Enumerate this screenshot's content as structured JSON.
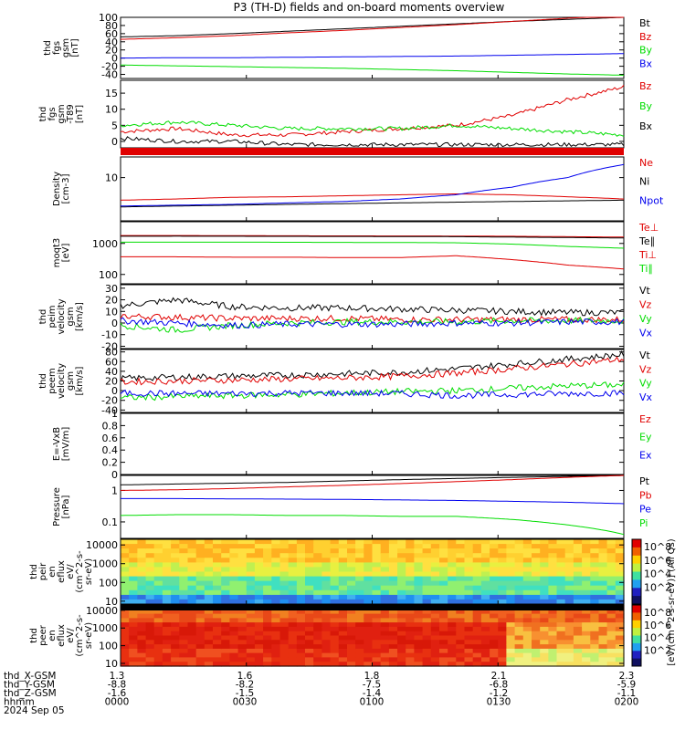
{
  "title": "P3 (TH-D) fields and on-board moments overview",
  "colors": {
    "black": "#000000",
    "red": "#e00000",
    "green": "#00dd00",
    "blue": "#0000ee",
    "spectrogram_warm": "#e83010",
    "spectrogram_cool": "#ffe040"
  },
  "chart_data": [
    {
      "type": "line",
      "ylabel": [
        "thd",
        "fgs",
        "gsm",
        "[nT]"
      ],
      "ylim": [
        -50,
        100
      ],
      "ticks": [
        100,
        80,
        60,
        40,
        20,
        0,
        -20,
        -40
      ],
      "series": [
        {
          "name": "Bt",
          "color": "black",
          "values": [
            52,
            55,
            60,
            66,
            72,
            78,
            84,
            90,
            95,
            100
          ]
        },
        {
          "name": "Bz",
          "color": "red",
          "values": [
            46,
            50,
            55,
            62,
            68,
            75,
            82,
            90,
            98,
            104
          ]
        },
        {
          "name": "By",
          "color": "green",
          "values": [
            -17,
            -19,
            -21,
            -23,
            -25,
            -28,
            -31,
            -35,
            -39,
            -42
          ]
        },
        {
          "name": "Bx",
          "color": "blue",
          "values": [
            0,
            1,
            1,
            2,
            3,
            4,
            5,
            7,
            9,
            11
          ]
        }
      ]
    },
    {
      "type": "line",
      "ylabel": [
        "thd",
        "fgs",
        "gsm",
        "-T89",
        "[nT]"
      ],
      "ylim": [
        -2,
        19
      ],
      "ticks": [
        15,
        10,
        5,
        0
      ],
      "series": [
        {
          "name": "Bz",
          "color": "red",
          "values": [
            3,
            4,
            2,
            2,
            3,
            4,
            5,
            8,
            13,
            17
          ]
        },
        {
          "name": "By",
          "color": "green",
          "values": [
            5,
            6,
            5,
            4,
            4,
            4,
            5,
            4,
            3,
            2
          ]
        },
        {
          "name": "Bx",
          "color": "black",
          "values": [
            1,
            0,
            0,
            -1,
            -1,
            -1,
            -1,
            -1,
            -1,
            -1
          ]
        }
      ]
    },
    {
      "type": "line",
      "ylabel": [
        "Density",
        "[cm-3]"
      ],
      "ylim": [
        1,
        30
      ],
      "log": true,
      "ticks": [
        10
      ],
      "series": [
        {
          "name": "Ne",
          "color": "red",
          "values": [
            3,
            3.2,
            3.5,
            3.6,
            3.8,
            4,
            4.2,
            4,
            3.6,
            3.2
          ]
        },
        {
          "name": "Ni",
          "color": "black",
          "values": [
            2.1,
            2.2,
            2.3,
            2.4,
            2.5,
            2.6,
            2.7,
            2.8,
            2.9,
            3
          ]
        },
        {
          "name": "Npot",
          "color": "blue",
          "values": [
            2.2,
            2.3,
            2.4,
            2.6,
            2.8,
            3.2,
            4,
            6,
            10,
            20
          ]
        }
      ]
    },
    {
      "type": "line",
      "ylabel": [
        "moqt3",
        "[eV]"
      ],
      "ylim": [
        50,
        5000
      ],
      "log": true,
      "ticks": [
        1000,
        100
      ],
      "series": [
        {
          "name": "Te⊥",
          "color": "red",
          "values": [
            1800,
            1800,
            1780,
            1760,
            1750,
            1740,
            1730,
            1700,
            1650,
            1600
          ]
        },
        {
          "name": "Te∥",
          "color": "black",
          "values": [
            1700,
            1710,
            1700,
            1690,
            1680,
            1670,
            1650,
            1600,
            1550,
            1500
          ]
        },
        {
          "name": "Ti⊥",
          "color": "red",
          "values": [
            370,
            370,
            360,
            360,
            350,
            350,
            400,
            300,
            200,
            150
          ]
        },
        {
          "name": "Ti∥",
          "color": "green",
          "values": [
            1100,
            1100,
            1100,
            1090,
            1080,
            1070,
            1050,
            950,
            800,
            700
          ]
        }
      ]
    },
    {
      "type": "line",
      "ylabel": [
        "thd",
        "peim",
        "velocity",
        "gsm",
        "[km/s]"
      ],
      "ylim": [
        -22,
        33
      ],
      "ticks": [
        30,
        20,
        10,
        0,
        -10,
        -20
      ],
      "series": [
        {
          "name": "Vt",
          "color": "black",
          "values": [
            15,
            20,
            14,
            13,
            13,
            12,
            11,
            10,
            9,
            9
          ]
        },
        {
          "name": "Vz",
          "color": "red",
          "values": [
            6,
            5,
            4,
            4,
            4,
            3,
            3,
            3,
            3,
            3
          ]
        },
        {
          "name": "Vy",
          "color": "green",
          "values": [
            -2,
            -6,
            -2,
            0,
            1,
            1,
            1,
            2,
            2,
            2
          ]
        },
        {
          "name": "Vx",
          "color": "blue",
          "values": [
            2,
            0,
            -2,
            -1,
            -1,
            -1,
            0,
            0,
            1,
            1
          ]
        }
      ]
    },
    {
      "type": "line",
      "ylabel": [
        "thd",
        "peem",
        "velocity",
        "gsm",
        "[km/s]"
      ],
      "ylim": [
        -45,
        85
      ],
      "ticks": [
        80,
        60,
        40,
        20,
        0,
        -20,
        -40
      ],
      "series": [
        {
          "name": "Vt",
          "color": "black",
          "values": [
            25,
            28,
            30,
            32,
            35,
            38,
            45,
            55,
            65,
            75
          ]
        },
        {
          "name": "Vz",
          "color": "red",
          "values": [
            18,
            20,
            22,
            24,
            26,
            30,
            36,
            45,
            55,
            65
          ]
        },
        {
          "name": "Vy",
          "color": "green",
          "values": [
            -15,
            -12,
            -10,
            -8,
            -5,
            -2,
            0,
            5,
            10,
            12
          ]
        },
        {
          "name": "Vx",
          "color": "blue",
          "values": [
            -5,
            -6,
            -6,
            -5,
            -5,
            -6,
            -10,
            -8,
            -6,
            -5
          ]
        }
      ]
    },
    {
      "type": "line",
      "ylabel": [
        "E=-VxB",
        "[mV/m]"
      ],
      "ylim": [
        0,
        1
      ],
      "ticks": [
        1.0,
        0.8,
        0.6,
        0.4,
        0.2,
        0.0
      ],
      "series": [
        {
          "name": "Ez",
          "color": "red",
          "values": []
        },
        {
          "name": "Ey",
          "color": "green",
          "values": []
        },
        {
          "name": "Ex",
          "color": "blue",
          "values": []
        }
      ]
    },
    {
      "type": "line",
      "ylabel": [
        "Pressure",
        "[nPa]"
      ],
      "ylim": [
        0.03,
        3
      ],
      "log": true,
      "ticks": [
        1.0,
        0.1
      ],
      "series": [
        {
          "name": "Pt",
          "color": "black",
          "values": [
            1.5,
            1.6,
            1.7,
            1.8,
            2.0,
            2.2,
            2.4,
            2.6,
            2.8,
            3.0
          ]
        },
        {
          "name": "Pb",
          "color": "red",
          "values": [
            1.0,
            1.05,
            1.15,
            1.3,
            1.45,
            1.65,
            1.9,
            2.2,
            2.6,
            3.0
          ]
        },
        {
          "name": "Pe",
          "color": "blue",
          "values": [
            0.55,
            0.55,
            0.54,
            0.53,
            0.52,
            0.5,
            0.48,
            0.45,
            0.42,
            0.38
          ]
        },
        {
          "name": "Pi",
          "color": "green",
          "values": [
            0.16,
            0.17,
            0.17,
            0.16,
            0.16,
            0.15,
            0.15,
            0.12,
            0.08,
            0.04
          ]
        }
      ]
    },
    {
      "type": "heatmap",
      "ylabel": [
        "thd",
        "peir",
        "en",
        "eflux",
        "eV/",
        "(cm^2-s-",
        "sr-eV)"
      ],
      "ylim": [
        7,
        20000
      ],
      "log": true,
      "ticks": [
        10000,
        1000,
        100,
        10
      ]
    },
    {
      "type": "heatmap",
      "ylabel": [
        "thd",
        "peer",
        "en",
        "eflux",
        "eV/",
        "(cm^2-s-",
        "sr-eV)"
      ],
      "ylim": [
        7,
        20000
      ],
      "log": true,
      "ticks": [
        10000,
        1000,
        100,
        10
      ]
    }
  ],
  "colorbar": {
    "ticks": [
      "10^8",
      "10^6",
      "10^4",
      "10^2"
    ],
    "label": "[eV/(cm^2-s-sr-eV)] (All Qs)"
  },
  "footer": {
    "rows": [
      {
        "label": "thd_X-GSM",
        "values": [
          "1.3",
          "1.6",
          "1.8",
          "2.1",
          "2.3"
        ]
      },
      {
        "label": "thd_Y-GSM",
        "values": [
          "-8.8",
          "-8.2",
          "-7.5",
          "-6.8",
          "-5.9"
        ]
      },
      {
        "label": "thd_Z-GSM",
        "values": [
          "-1.6",
          "-1.5",
          "-1.4",
          "-1.2",
          "-1.1"
        ]
      },
      {
        "label": "hhmm",
        "values": [
          "0000",
          "0030",
          "0100",
          "0130",
          "0200"
        ]
      }
    ],
    "date": "2024 Sep 05"
  }
}
